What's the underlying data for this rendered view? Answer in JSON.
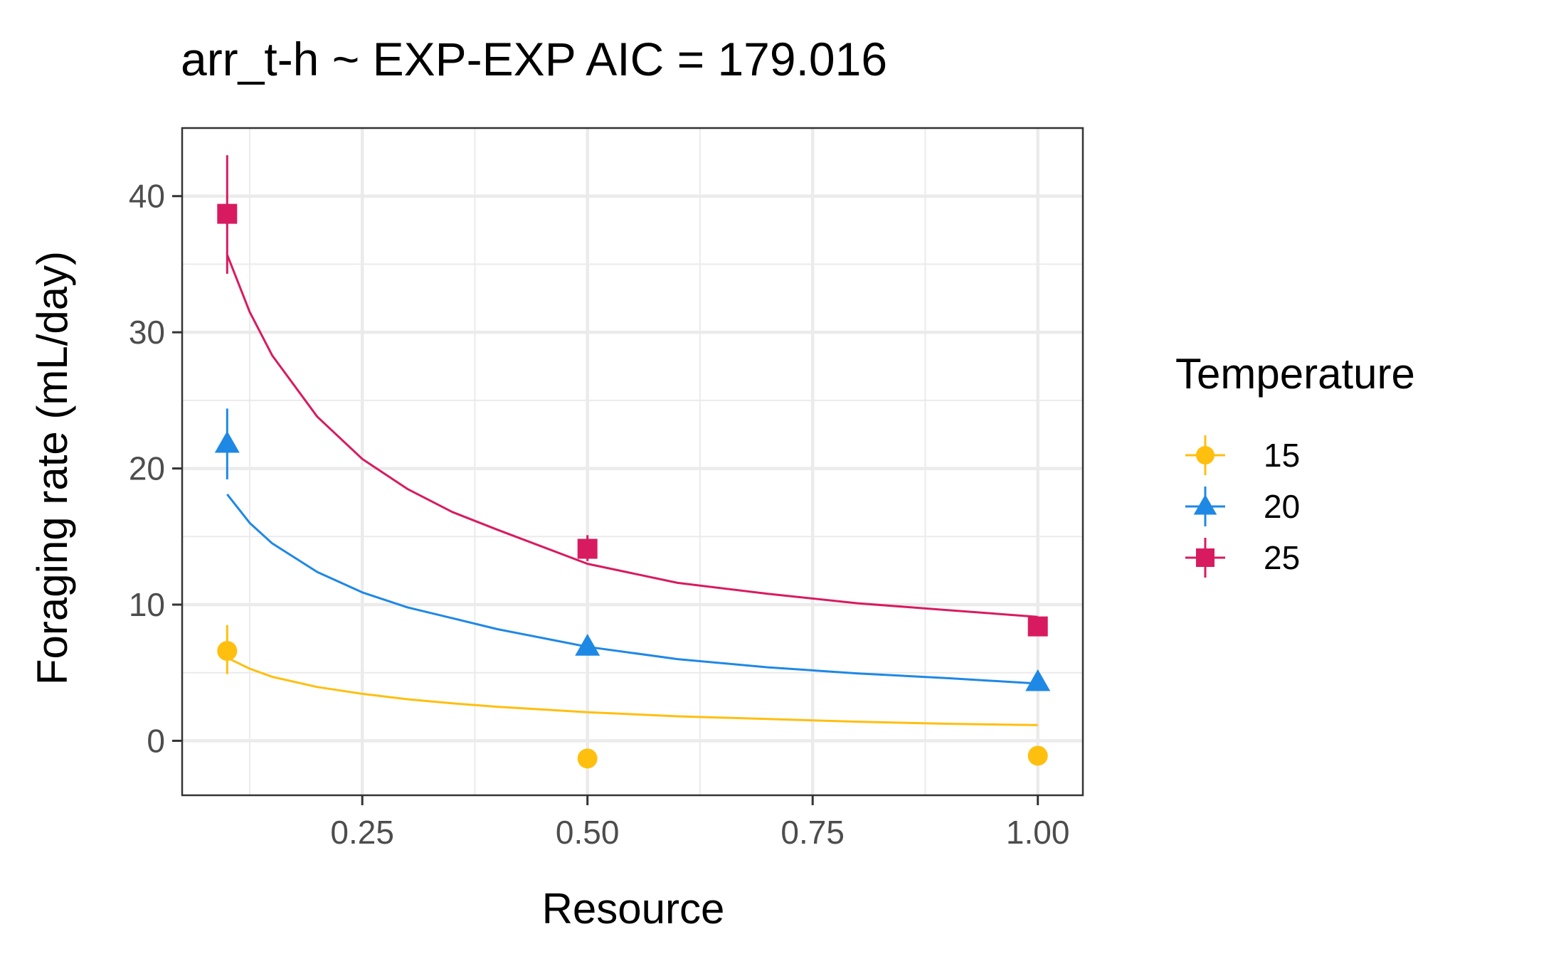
{
  "chart_data": {
    "type": "scatter",
    "title": "arr_t-h ~ EXP-EXP AIC = 179.016",
    "xlabel": "Resource",
    "ylabel": "Foraging rate (mL/day)",
    "xlim": [
      0.05,
      1.05
    ],
    "ylim": [
      -4,
      45
    ],
    "x_ticks": [
      0.25,
      0.5,
      0.75,
      1.0
    ],
    "x_tick_labels": [
      "0.25",
      "0.50",
      "0.75",
      "1.00"
    ],
    "y_ticks": [
      0,
      10,
      20,
      30,
      40
    ],
    "y_tick_labels": [
      "0",
      "10",
      "20",
      "30",
      "40"
    ],
    "x_minor_ticks": [
      0.125,
      0.375,
      0.625,
      0.875
    ],
    "y_minor_ticks": [
      5,
      15,
      25,
      35
    ],
    "grid": true,
    "legend": {
      "title": "Temperature",
      "placement": "right"
    },
    "series": [
      {
        "name": "15",
        "color": "#FFBF0F",
        "marker": "circle",
        "points": [
          {
            "x": 0.1,
            "y": 6.6,
            "err_low": 4.9,
            "err_high": 8.5
          },
          {
            "x": 0.5,
            "y": -1.3,
            "err_low": -1.3,
            "err_high": -1.3
          },
          {
            "x": 1.0,
            "y": -1.1,
            "err_low": -1.1,
            "err_high": -1.1
          }
        ],
        "fit": {
          "x": [
            0.1,
            0.125,
            0.15,
            0.2,
            0.25,
            0.3,
            0.35,
            0.4,
            0.5,
            0.6,
            0.7,
            0.8,
            0.9,
            1.0
          ],
          "y": [
            6.1,
            5.3,
            4.7,
            3.95,
            3.45,
            3.05,
            2.75,
            2.5,
            2.1,
            1.8,
            1.6,
            1.4,
            1.25,
            1.15
          ]
        }
      },
      {
        "name": "20",
        "color": "#1E88E5",
        "marker": "triangle",
        "points": [
          {
            "x": 0.1,
            "y": 21.8,
            "err_low": 19.2,
            "err_high": 24.4
          },
          {
            "x": 0.5,
            "y": 6.9,
            "err_low": 6.9,
            "err_high": 6.9
          },
          {
            "x": 1.0,
            "y": 4.3,
            "err_low": 4.3,
            "err_high": 4.3
          }
        ],
        "fit": {
          "x": [
            0.1,
            0.125,
            0.15,
            0.2,
            0.25,
            0.3,
            0.35,
            0.4,
            0.5,
            0.6,
            0.7,
            0.8,
            0.9,
            1.0
          ],
          "y": [
            18.1,
            16.0,
            14.5,
            12.4,
            10.9,
            9.8,
            9.0,
            8.2,
            6.9,
            6.0,
            5.4,
            4.95,
            4.6,
            4.2
          ]
        }
      },
      {
        "name": "25",
        "color": "#D81B60",
        "marker": "square",
        "points": [
          {
            "x": 0.1,
            "y": 38.7,
            "err_low": 34.3,
            "err_high": 43.0
          },
          {
            "x": 0.5,
            "y": 14.1,
            "err_low": 13.2,
            "err_high": 15.1
          },
          {
            "x": 1.0,
            "y": 8.4,
            "err_low": 8.4,
            "err_high": 8.4
          }
        ],
        "fit": {
          "x": [
            0.1,
            0.125,
            0.15,
            0.2,
            0.25,
            0.3,
            0.35,
            0.4,
            0.5,
            0.6,
            0.7,
            0.8,
            0.9,
            1.0
          ],
          "y": [
            35.7,
            31.5,
            28.3,
            23.8,
            20.7,
            18.5,
            16.8,
            15.5,
            13.0,
            11.6,
            10.8,
            10.1,
            9.6,
            9.1
          ]
        }
      }
    ]
  }
}
